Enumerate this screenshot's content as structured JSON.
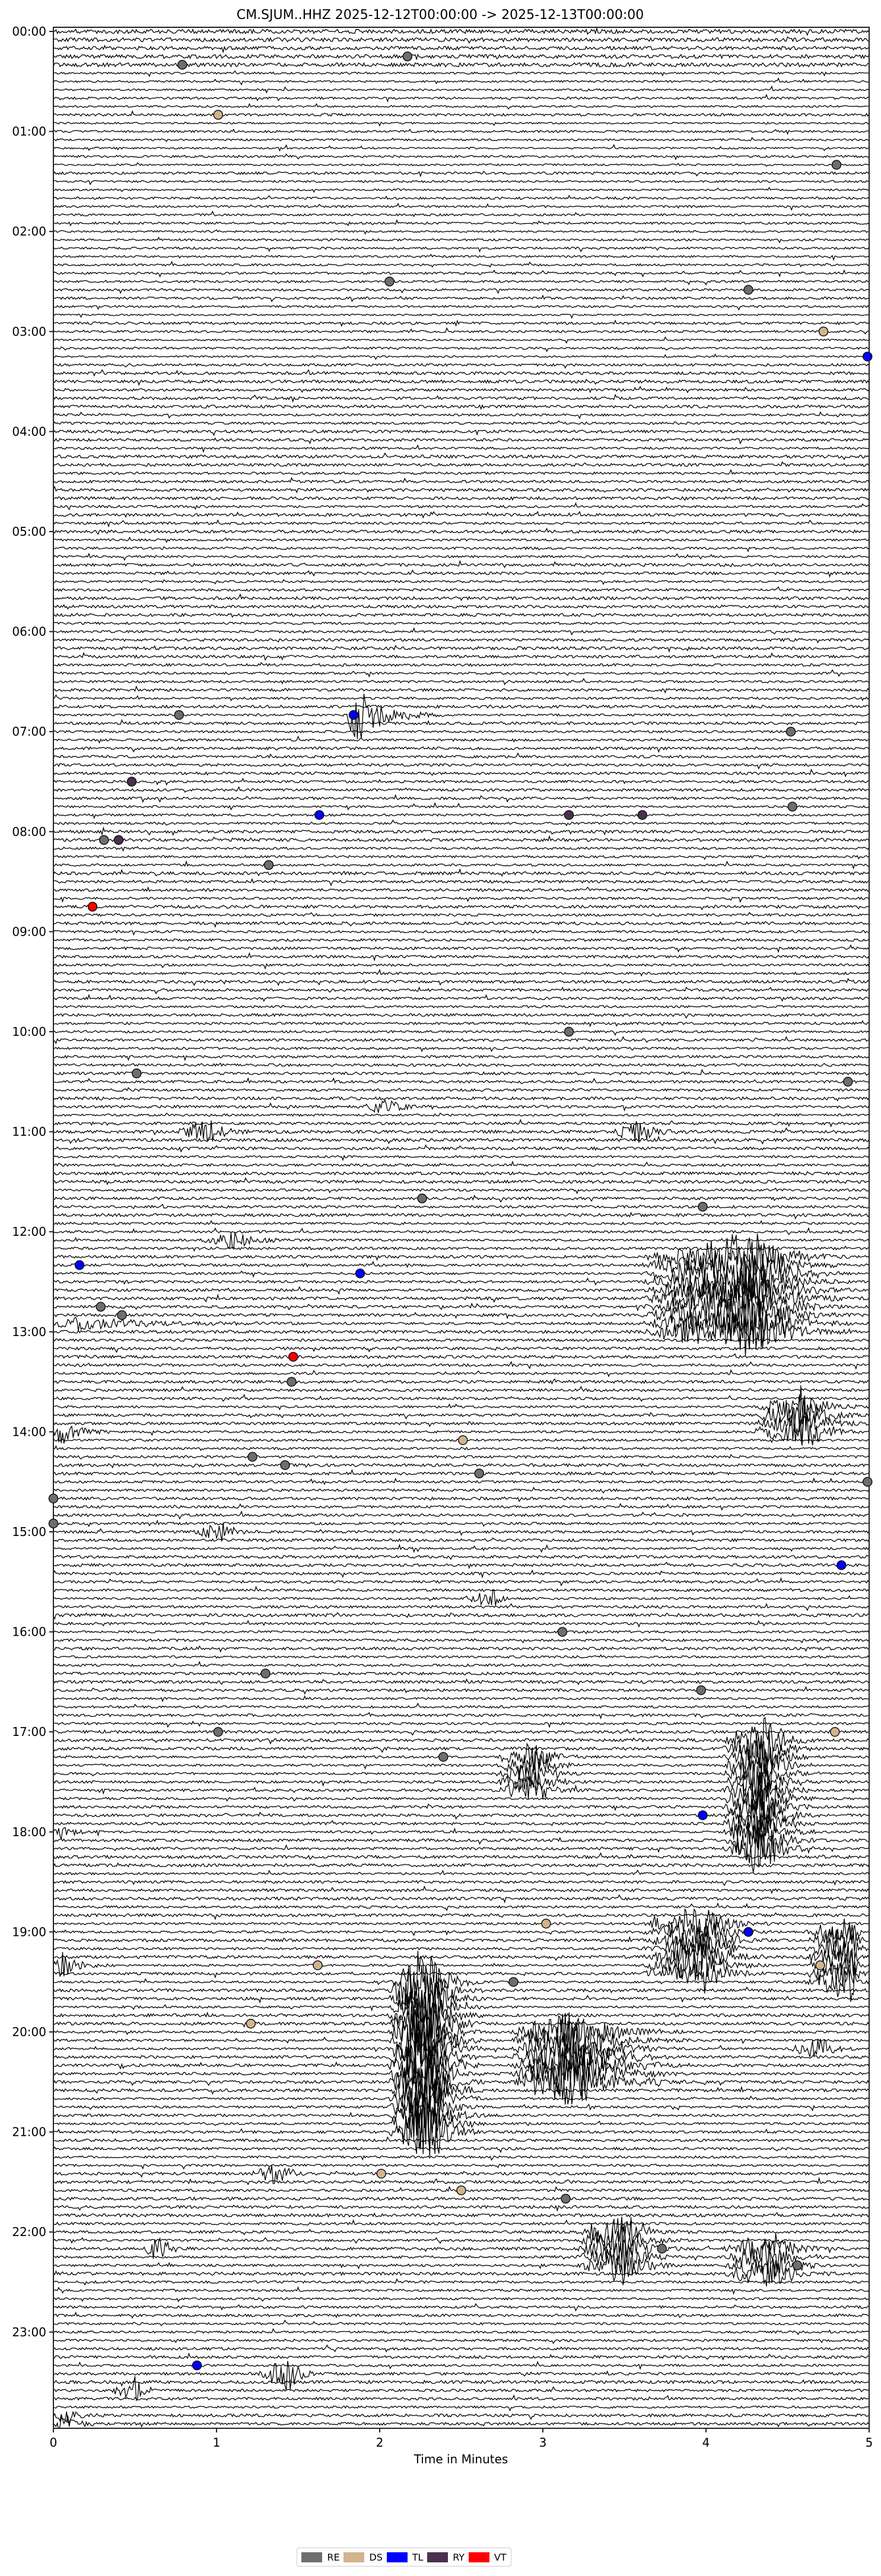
{
  "chart_data": {
    "type": "line",
    "title": "CM.SJUM..HHZ  2025-12-12T00:00:00 -> 2025-12-13T00:00:00",
    "xlabel": "Time in Minutes",
    "ylabel": "",
    "xlim": [
      0,
      5
    ],
    "xticks": [
      "0",
      "1",
      "2",
      "3",
      "4",
      "5"
    ],
    "row_interval_minutes": 5,
    "row_count": 288,
    "yticks": [
      "00:00",
      "01:00",
      "02:00",
      "03:00",
      "04:00",
      "05:00",
      "06:00",
      "07:00",
      "08:00",
      "09:00",
      "10:00",
      "11:00",
      "12:00",
      "13:00",
      "14:00",
      "15:00",
      "16:00",
      "17:00",
      "18:00",
      "19:00",
      "20:00",
      "21:00",
      "22:00",
      "23:00"
    ],
    "trace_color": "#000000",
    "grid": false,
    "legend_placement": "bottom-center",
    "legend": [
      {
        "label": "RE",
        "color": "#6e6e6e"
      },
      {
        "label": "DS",
        "color": "#d2b48c"
      },
      {
        "label": "TL",
        "color": "#0000ff"
      },
      {
        "label": "RY",
        "color": "#4b3050"
      },
      {
        "label": "VT",
        "color": "#ff0000"
      }
    ],
    "events": [
      {
        "row": "00:15",
        "minute": 2.17,
        "class": "RE"
      },
      {
        "row": "00:20",
        "minute": 0.79,
        "class": "RE"
      },
      {
        "row": "00:50",
        "minute": 1.01,
        "class": "DS"
      },
      {
        "row": "01:20",
        "minute": 4.8,
        "class": "RE"
      },
      {
        "row": "02:30",
        "minute": 2.06,
        "class": "RE"
      },
      {
        "row": "02:35",
        "minute": 4.26,
        "class": "RE"
      },
      {
        "row": "03:00",
        "minute": 4.72,
        "class": "DS"
      },
      {
        "row": "03:15",
        "minute": 4.99,
        "class": "TL"
      },
      {
        "row": "06:50",
        "minute": 0.77,
        "class": "RE"
      },
      {
        "row": "06:50",
        "minute": 1.84,
        "class": "TL"
      },
      {
        "row": "07:00",
        "minute": 4.52,
        "class": "RE"
      },
      {
        "row": "07:30",
        "minute": 0.48,
        "class": "RY"
      },
      {
        "row": "07:45",
        "minute": 4.53,
        "class": "RE"
      },
      {
        "row": "07:50",
        "minute": 1.63,
        "class": "TL"
      },
      {
        "row": "07:50",
        "minute": 3.16,
        "class": "RY"
      },
      {
        "row": "07:50",
        "minute": 3.61,
        "class": "RY"
      },
      {
        "row": "08:05",
        "minute": 0.31,
        "class": "RE"
      },
      {
        "row": "08:05",
        "minute": 0.4,
        "class": "RY"
      },
      {
        "row": "08:20",
        "minute": 1.32,
        "class": "RE"
      },
      {
        "row": "08:45",
        "minute": 0.24,
        "class": "VT"
      },
      {
        "row": "10:00",
        "minute": 3.16,
        "class": "RE"
      },
      {
        "row": "10:25",
        "minute": 0.51,
        "class": "RE"
      },
      {
        "row": "10:30",
        "minute": 4.87,
        "class": "RE"
      },
      {
        "row": "11:40",
        "minute": 2.26,
        "class": "RE"
      },
      {
        "row": "11:45",
        "minute": 3.98,
        "class": "RE"
      },
      {
        "row": "12:20",
        "minute": 0.16,
        "class": "TL"
      },
      {
        "row": "12:25",
        "minute": 1.88,
        "class": "TL"
      },
      {
        "row": "12:45",
        "minute": 0.29,
        "class": "RE"
      },
      {
        "row": "12:50",
        "minute": 0.42,
        "class": "RE"
      },
      {
        "row": "13:15",
        "minute": 1.47,
        "class": "VT"
      },
      {
        "row": "13:30",
        "minute": 1.46,
        "class": "RE"
      },
      {
        "row": "14:05",
        "minute": 2.51,
        "class": "DS"
      },
      {
        "row": "14:15",
        "minute": 1.22,
        "class": "RE"
      },
      {
        "row": "14:20",
        "minute": 1.42,
        "class": "RE"
      },
      {
        "row": "14:25",
        "minute": 2.61,
        "class": "RE"
      },
      {
        "row": "14:30",
        "minute": 4.99,
        "class": "RE"
      },
      {
        "row": "14:40",
        "minute": 0.0,
        "class": "RE"
      },
      {
        "row": "14:55",
        "minute": 0.0,
        "class": "RE"
      },
      {
        "row": "15:20",
        "minute": 4.83,
        "class": "TL"
      },
      {
        "row": "16:00",
        "minute": 3.12,
        "class": "RE"
      },
      {
        "row": "16:25",
        "minute": 1.3,
        "class": "RE"
      },
      {
        "row": "16:35",
        "minute": 3.97,
        "class": "RE"
      },
      {
        "row": "17:00",
        "minute": 1.01,
        "class": "RE"
      },
      {
        "row": "17:00",
        "minute": 4.79,
        "class": "DS"
      },
      {
        "row": "17:15",
        "minute": 2.39,
        "class": "RE"
      },
      {
        "row": "17:50",
        "minute": 3.98,
        "class": "TL"
      },
      {
        "row": "18:55",
        "minute": 3.02,
        "class": "DS"
      },
      {
        "row": "19:00",
        "minute": 4.26,
        "class": "TL"
      },
      {
        "row": "19:20",
        "minute": 1.62,
        "class": "DS"
      },
      {
        "row": "19:20",
        "minute": 4.7,
        "class": "DS"
      },
      {
        "row": "19:30",
        "minute": 2.82,
        "class": "RE"
      },
      {
        "row": "19:55",
        "minute": 1.21,
        "class": "DS"
      },
      {
        "row": "21:25",
        "minute": 2.01,
        "class": "DS"
      },
      {
        "row": "21:35",
        "minute": 2.5,
        "class": "DS"
      },
      {
        "row": "21:40",
        "minute": 3.14,
        "class": "RE"
      },
      {
        "row": "22:10",
        "minute": 3.73,
        "class": "RE"
      },
      {
        "row": "22:20",
        "minute": 4.56,
        "class": "RE"
      },
      {
        "row": "23:20",
        "minute": 0.88,
        "class": "TL"
      }
    ]
  }
}
